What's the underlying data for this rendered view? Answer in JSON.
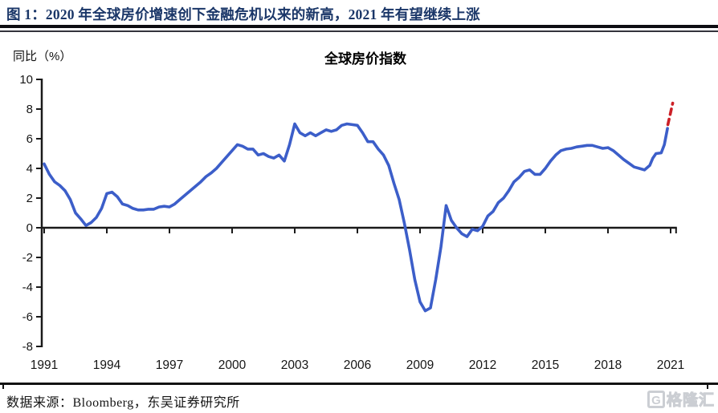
{
  "header": {
    "title": "图 1：2020 年全球房价增速创下金融危机以来的新高，2021 年有望继续上涨"
  },
  "footer": {
    "source": "数据来源：Bloomberg，东吴证券研究所"
  },
  "watermark": {
    "icon_letter": "G",
    "text": "格隆汇"
  },
  "colors": {
    "header_title": "#1a3668",
    "line_blue": "#3c5ec9",
    "forecast_red": "#cc2027",
    "axis_black": "#1a1a1a"
  },
  "chart_data": {
    "type": "line",
    "title": "全球房价指数",
    "ylabel": "同比（%）",
    "xlabel": "",
    "grid": false,
    "legend": "none",
    "xlim": [
      1991,
      2021.3
    ],
    "ylim": [
      -8,
      10
    ],
    "x_ticks": [
      1991,
      1994,
      1997,
      2000,
      2003,
      2006,
      2009,
      2012,
      2015,
      2018,
      2021
    ],
    "y_ticks": [
      10,
      8,
      6,
      4,
      2,
      0,
      -2,
      -4,
      -6,
      -8
    ],
    "series": [
      {
        "name": "全球房价指数同比（历史）",
        "style": "solid",
        "color": "#3c5ec9",
        "points": [
          [
            1991.0,
            4.3
          ],
          [
            1991.25,
            3.6
          ],
          [
            1991.5,
            3.1
          ],
          [
            1991.75,
            2.85
          ],
          [
            1992.0,
            2.5
          ],
          [
            1992.25,
            1.9
          ],
          [
            1992.5,
            1.0
          ],
          [
            1992.75,
            0.6
          ],
          [
            1993.0,
            0.15
          ],
          [
            1993.25,
            0.35
          ],
          [
            1993.5,
            0.7
          ],
          [
            1993.75,
            1.3
          ],
          [
            1994.0,
            2.3
          ],
          [
            1994.25,
            2.4
          ],
          [
            1994.5,
            2.1
          ],
          [
            1994.75,
            1.6
          ],
          [
            1995.0,
            1.5
          ],
          [
            1995.25,
            1.3
          ],
          [
            1995.5,
            1.2
          ],
          [
            1995.75,
            1.2
          ],
          [
            1996.0,
            1.25
          ],
          [
            1996.25,
            1.25
          ],
          [
            1996.5,
            1.4
          ],
          [
            1996.75,
            1.45
          ],
          [
            1997.0,
            1.4
          ],
          [
            1997.25,
            1.6
          ],
          [
            1997.5,
            1.9
          ],
          [
            1997.75,
            2.2
          ],
          [
            1998.0,
            2.5
          ],
          [
            1998.25,
            2.8
          ],
          [
            1998.5,
            3.1
          ],
          [
            1998.75,
            3.45
          ],
          [
            1999.0,
            3.7
          ],
          [
            1999.25,
            4.0
          ],
          [
            1999.5,
            4.4
          ],
          [
            1999.75,
            4.8
          ],
          [
            2000.0,
            5.2
          ],
          [
            2000.25,
            5.6
          ],
          [
            2000.5,
            5.5
          ],
          [
            2000.75,
            5.3
          ],
          [
            2001.0,
            5.3
          ],
          [
            2001.25,
            4.9
          ],
          [
            2001.5,
            5.0
          ],
          [
            2001.75,
            4.8
          ],
          [
            2002.0,
            4.7
          ],
          [
            2002.25,
            4.9
          ],
          [
            2002.5,
            4.5
          ],
          [
            2002.75,
            5.6
          ],
          [
            2003.0,
            7.0
          ],
          [
            2003.25,
            6.4
          ],
          [
            2003.5,
            6.2
          ],
          [
            2003.75,
            6.4
          ],
          [
            2004.0,
            6.2
          ],
          [
            2004.25,
            6.4
          ],
          [
            2004.5,
            6.6
          ],
          [
            2004.75,
            6.5
          ],
          [
            2005.0,
            6.6
          ],
          [
            2005.25,
            6.9
          ],
          [
            2005.5,
            7.0
          ],
          [
            2005.75,
            6.95
          ],
          [
            2006.0,
            6.9
          ],
          [
            2006.25,
            6.4
          ],
          [
            2006.5,
            5.8
          ],
          [
            2006.75,
            5.8
          ],
          [
            2007.0,
            5.3
          ],
          [
            2007.25,
            4.9
          ],
          [
            2007.5,
            4.2
          ],
          [
            2007.75,
            3.0
          ],
          [
            2008.0,
            1.9
          ],
          [
            2008.25,
            0.3
          ],
          [
            2008.5,
            -1.5
          ],
          [
            2008.75,
            -3.5
          ],
          [
            2009.0,
            -5.0
          ],
          [
            2009.25,
            -5.6
          ],
          [
            2009.5,
            -5.4
          ],
          [
            2009.75,
            -3.5
          ],
          [
            2010.0,
            -1.3
          ],
          [
            2010.25,
            1.5
          ],
          [
            2010.5,
            0.5
          ],
          [
            2010.75,
            0.0
          ],
          [
            2011.0,
            -0.4
          ],
          [
            2011.25,
            -0.6
          ],
          [
            2011.5,
            -0.1
          ],
          [
            2011.75,
            -0.2
          ],
          [
            2012.0,
            0.1
          ],
          [
            2012.25,
            0.8
          ],
          [
            2012.5,
            1.1
          ],
          [
            2012.75,
            1.7
          ],
          [
            2013.0,
            2.0
          ],
          [
            2013.25,
            2.5
          ],
          [
            2013.5,
            3.1
          ],
          [
            2013.75,
            3.4
          ],
          [
            2014.0,
            3.8
          ],
          [
            2014.25,
            3.9
          ],
          [
            2014.5,
            3.6
          ],
          [
            2014.75,
            3.6
          ],
          [
            2015.0,
            4.0
          ],
          [
            2015.25,
            4.5
          ],
          [
            2015.5,
            4.9
          ],
          [
            2015.75,
            5.2
          ],
          [
            2016.0,
            5.3
          ],
          [
            2016.25,
            5.35
          ],
          [
            2016.5,
            5.45
          ],
          [
            2016.75,
            5.5
          ],
          [
            2017.0,
            5.55
          ],
          [
            2017.25,
            5.55
          ],
          [
            2017.5,
            5.45
          ],
          [
            2017.75,
            5.35
          ],
          [
            2018.0,
            5.4
          ],
          [
            2018.25,
            5.2
          ],
          [
            2018.5,
            4.9
          ],
          [
            2018.75,
            4.6
          ],
          [
            2019.0,
            4.35
          ],
          [
            2019.25,
            4.1
          ],
          [
            2019.5,
            4.0
          ],
          [
            2019.75,
            3.9
          ],
          [
            2020.0,
            4.2
          ],
          [
            2020.15,
            4.7
          ],
          [
            2020.3,
            5.0
          ],
          [
            2020.55,
            5.05
          ],
          [
            2020.7,
            5.6
          ],
          [
            2020.85,
            6.7
          ]
        ]
      },
      {
        "name": "2021 年预测（虚线）",
        "style": "dashed",
        "color": "#cc2027",
        "points": [
          [
            2020.87,
            6.95
          ],
          [
            2021.1,
            8.4
          ]
        ]
      }
    ]
  }
}
